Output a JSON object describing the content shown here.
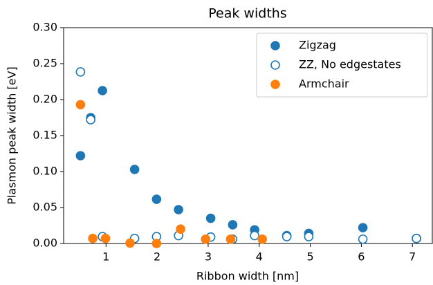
{
  "chart_data": {
    "type": "scatter",
    "title": "Peak widths",
    "xlabel": "Ribbon width [nm]",
    "ylabel": "Plasmon peak width [eV]",
    "xlim": [
      0.17,
      7.39
    ],
    "ylim": [
      0,
      0.3
    ],
    "xticks": [
      1,
      2,
      3,
      4,
      5,
      6,
      7
    ],
    "yticks": [
      {
        "value": 0,
        "label": "0.00"
      },
      {
        "value": 0.05,
        "label": "0.05"
      },
      {
        "value": 0.1,
        "label": "0.10"
      },
      {
        "value": 0.15,
        "label": "0.15"
      },
      {
        "value": 0.2,
        "label": "0.20"
      },
      {
        "value": 0.25,
        "label": "0.25"
      },
      {
        "value": 0.3,
        "label": "0.30"
      }
    ],
    "legend": "upper right",
    "series": [
      {
        "name": "Zigzag",
        "color": "#1f77b4",
        "filled": true,
        "x": [
          0.5,
          0.7,
          0.93,
          1.56,
          1.99,
          2.42,
          3.05,
          3.48,
          3.91,
          4.54,
          4.97,
          6.03,
          7.08
        ],
        "values": [
          0.122,
          0.175,
          0.2125,
          0.103,
          0.0615,
          0.047,
          0.035,
          0.026,
          0.019,
          0.011,
          0.014,
          0.022,
          0.007
        ]
      },
      {
        "name": "ZZ, No edgestates",
        "color": "#1f77b4",
        "filled": false,
        "x": [
          0.5,
          0.7,
          0.93,
          1.56,
          1.99,
          2.42,
          3.05,
          3.48,
          3.91,
          4.54,
          4.97,
          6.03,
          7.08
        ],
        "values": [
          0.2385,
          0.172,
          0.0096,
          0.007,
          0.0096,
          0.011,
          0.009,
          0.006,
          0.011,
          0.0096,
          0.0096,
          0.006,
          0.007
        ]
      },
      {
        "name": "Armchair",
        "color": "#ff7f0e",
        "filled": true,
        "x": [
          0.5,
          0.74,
          0.99,
          1.47,
          1.99,
          2.46,
          2.95,
          3.44,
          4.06
        ],
        "values": [
          0.193,
          0.007,
          0.007,
          0.0005,
          0,
          0.02,
          0.006,
          0.006,
          0.006
        ]
      }
    ]
  }
}
